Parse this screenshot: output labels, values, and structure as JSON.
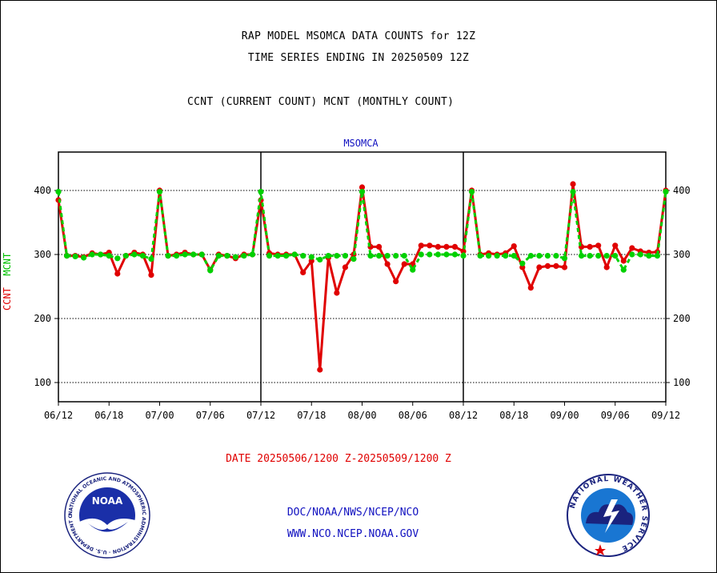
{
  "header": {
    "title_line1": "RAP MODEL MSOMCA DATA COUNTS for 12Z",
    "title_line2": "TIME SERIES ENDING IN 20250509 12Z",
    "subtitle": "CCNT (CURRENT COUNT) MCNT (MONTHLY COUNT)"
  },
  "footer": {
    "date_range": "DATE 20250506/1200 Z-20250509/1200 Z",
    "org": "DOC/NOAA/NWS/NCEP/NCO",
    "url": "WWW.NCO.NCEP.NOAA.GOV"
  },
  "logos": {
    "left": "noaa-logo",
    "left_text": "NOAA",
    "left_ring": "NATIONAL OCEANIC AND ATMOSPHERIC ADMINISTRATION · U.S. DEPARTMENT OF COMMERCE ·",
    "right": "nws-logo",
    "right_ring": "NATIONAL WEATHER SERVICE"
  },
  "chart_data": {
    "type": "line",
    "title": "MSOMCA",
    "ylabel_ccnt": "CCNT",
    "ylabel_mcnt": "MCNT",
    "ylim": [
      70,
      460
    ],
    "yticks": [
      100,
      200,
      300,
      400
    ],
    "x_tick_labels": [
      "06/12",
      "06/18",
      "07/00",
      "07/06",
      "07/12",
      "07/18",
      "08/00",
      "08/06",
      "08/12",
      "08/18",
      "09/00",
      "09/06",
      "09/12"
    ],
    "x_range": [
      0,
      72
    ],
    "day_dividers": [
      24,
      48
    ],
    "grid": "horizontal dotted",
    "colors": {
      "ccnt": "#e00000",
      "mcnt": "#00d000",
      "title": "#1010c0"
    },
    "series": [
      {
        "name": "CCNT",
        "x": [
          0,
          1,
          2,
          3,
          4,
          5,
          6,
          7,
          8,
          9,
          10,
          11,
          12,
          13,
          14,
          15,
          16,
          17,
          18,
          19,
          20,
          21,
          22,
          23,
          24,
          25,
          26,
          27,
          28,
          29,
          30,
          31,
          32,
          33,
          34,
          35,
          36,
          37,
          38,
          39,
          40,
          41,
          42,
          43,
          44,
          45,
          46,
          47,
          48,
          49,
          50,
          51,
          52,
          53,
          54,
          55,
          56,
          57,
          58,
          59,
          60,
          61,
          62,
          63,
          64,
          65,
          66,
          67,
          68,
          69,
          70,
          71,
          72
        ],
        "values": [
          385,
          298,
          298,
          296,
          302,
          300,
          303,
          270,
          298,
          303,
          300,
          268,
          400,
          298,
          300,
          303,
          300,
          300,
          276,
          300,
          298,
          294,
          300,
          300,
          385,
          302,
          300,
          300,
          300,
          272,
          290,
          120,
          295,
          240,
          280,
          300,
          405,
          312,
          312,
          285,
          258,
          285,
          285,
          314,
          314,
          312,
          312,
          312,
          305,
          400,
          300,
          302,
          300,
          302,
          313,
          280,
          248,
          280,
          282,
          282,
          280,
          410,
          312,
          312,
          314,
          280,
          314,
          290,
          310,
          305,
          303,
          304,
          400
        ]
      },
      {
        "name": "MCNT",
        "x": [
          0,
          1,
          2,
          3,
          4,
          5,
          6,
          7,
          8,
          9,
          10,
          11,
          12,
          13,
          14,
          15,
          16,
          17,
          18,
          19,
          20,
          21,
          22,
          23,
          24,
          25,
          26,
          27,
          28,
          29,
          30,
          31,
          32,
          33,
          34,
          35,
          36,
          37,
          38,
          39,
          40,
          41,
          42,
          43,
          44,
          45,
          46,
          47,
          48,
          49,
          50,
          51,
          52,
          53,
          54,
          55,
          56,
          57,
          58,
          59,
          60,
          61,
          62,
          63,
          64,
          65,
          66,
          67,
          68,
          69,
          70,
          71,
          72
        ],
        "values": [
          398,
          298,
          297,
          295,
          300,
          300,
          298,
          294,
          298,
          300,
          298,
          293,
          398,
          298,
          298,
          300,
          300,
          300,
          275,
          298,
          298,
          296,
          298,
          300,
          398,
          298,
          298,
          298,
          300,
          298,
          296,
          292,
          298,
          298,
          298,
          293,
          398,
          298,
          298,
          298,
          298,
          298,
          276,
          300,
          300,
          300,
          300,
          300,
          298,
          398,
          298,
          298,
          298,
          298,
          298,
          286,
          298,
          298,
          298,
          298,
          294,
          398,
          298,
          298,
          298,
          298,
          298,
          276,
          300,
          300,
          298,
          298,
          398
        ]
      }
    ]
  }
}
